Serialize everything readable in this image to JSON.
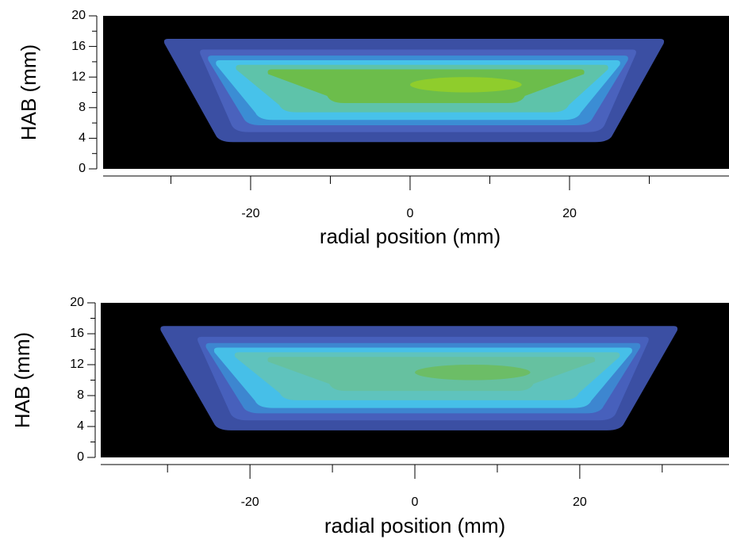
{
  "chart_data": [
    {
      "type": "contour",
      "xlabel": "radial position (mm)",
      "ylabel": "HAB (mm)",
      "xlim": [
        -38.5,
        40
      ],
      "ylim": [
        0,
        20
      ],
      "xticks": [
        -20,
        0,
        20
      ],
      "yticks": [
        0,
        4,
        8,
        12,
        16,
        20
      ]
    },
    {
      "type": "contour",
      "xlabel": "radial position (mm)",
      "ylabel": "HAB (mm)",
      "xlim": [
        -38.1,
        38.1
      ],
      "ylim": [
        0,
        20
      ],
      "xticks": [
        -20,
        0,
        20
      ],
      "yticks": [
        0,
        4,
        8,
        12,
        16,
        20
      ]
    }
  ]
}
